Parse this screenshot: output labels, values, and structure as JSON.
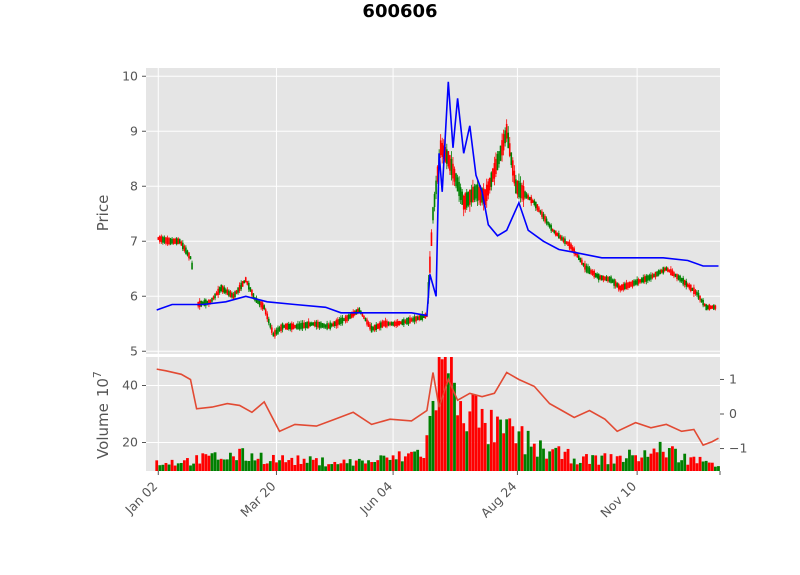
{
  "colors": {
    "panel_bg": "#e5e5e5",
    "grid": "#ffffff",
    "up": "#ff0000",
    "down": "#008000",
    "ma": "#0000ff",
    "secondary": "#e24a33",
    "text": "#555555"
  },
  "chart_data": [
    {
      "type": "candlestick",
      "title": "600606",
      "ylabel": "Price",
      "ylim": [
        4.95,
        10.15
      ],
      "yticks": [
        "5",
        "6",
        "7",
        "8",
        "9",
        "10"
      ],
      "x_range": [
        -7,
        367
      ],
      "x_ticks": [
        {
          "label": "Jan 02",
          "day": 1
        },
        {
          "label": "Mar 20",
          "day": 78
        },
        {
          "label": "Jun 04",
          "day": 154
        },
        {
          "label": "Aug 24",
          "day": 235
        },
        {
          "label": "Nov 10",
          "day": 313
        }
      ],
      "grid": true,
      "price_keypoints": [
        [
          1,
          7.05
        ],
        [
          8,
          7.0
        ],
        [
          15,
          7.0
        ],
        [
          22,
          6.7
        ],
        [
          23,
          6.55
        ],
        [
          24,
          null
        ],
        [
          26,
          5.85
        ],
        [
          35,
          5.9
        ],
        [
          42,
          6.15
        ],
        [
          50,
          6.0
        ],
        [
          58,
          6.3
        ],
        [
          64,
          5.95
        ],
        [
          70,
          5.8
        ],
        [
          76,
          5.3
        ],
        [
          82,
          5.45
        ],
        [
          92,
          5.45
        ],
        [
          102,
          5.5
        ],
        [
          112,
          5.45
        ],
        [
          116,
          5.5
        ],
        [
          124,
          5.6
        ],
        [
          132,
          5.75
        ],
        [
          140,
          5.4
        ],
        [
          148,
          5.5
        ],
        [
          156,
          5.5
        ],
        [
          164,
          5.55
        ],
        [
          176,
          5.65
        ],
        [
          180,
          7.5
        ],
        [
          185,
          8.7
        ],
        [
          190,
          8.5
        ],
        [
          194,
          8.2
        ],
        [
          200,
          7.7
        ],
        [
          208,
          7.9
        ],
        [
          214,
          7.8
        ],
        [
          224,
          8.6
        ],
        [
          228,
          9.0
        ],
        [
          234,
          8.0
        ],
        [
          246,
          7.7
        ],
        [
          258,
          7.2
        ],
        [
          270,
          6.9
        ],
        [
          280,
          6.5
        ],
        [
          288,
          6.35
        ],
        [
          296,
          6.3
        ],
        [
          302,
          6.15
        ],
        [
          312,
          6.25
        ],
        [
          322,
          6.35
        ],
        [
          332,
          6.5
        ],
        [
          342,
          6.3
        ],
        [
          352,
          6.05
        ],
        [
          358,
          5.8
        ],
        [
          364,
          5.8
        ]
      ],
      "ma_keypoints": [
        [
          0,
          5.75
        ],
        [
          10,
          5.85
        ],
        [
          30,
          5.85
        ],
        [
          45,
          5.9
        ],
        [
          58,
          6.0
        ],
        [
          72,
          5.9
        ],
        [
          90,
          5.85
        ],
        [
          110,
          5.8
        ],
        [
          120,
          5.7
        ],
        [
          135,
          5.7
        ],
        [
          150,
          5.7
        ],
        [
          166,
          5.7
        ],
        [
          176,
          5.65
        ],
        [
          178,
          6.4
        ],
        [
          182,
          6.0
        ],
        [
          184,
          8.6
        ],
        [
          186,
          7.9
        ],
        [
          190,
          9.9
        ],
        [
          193,
          8.7
        ],
        [
          196,
          9.6
        ],
        [
          200,
          8.6
        ],
        [
          204,
          9.1
        ],
        [
          208,
          8.2
        ],
        [
          212,
          7.9
        ],
        [
          216,
          7.3
        ],
        [
          222,
          7.1
        ],
        [
          228,
          7.2
        ],
        [
          236,
          7.7
        ],
        [
          242,
          7.2
        ],
        [
          252,
          7.0
        ],
        [
          262,
          6.85
        ],
        [
          272,
          6.8
        ],
        [
          290,
          6.7
        ],
        [
          310,
          6.7
        ],
        [
          330,
          6.7
        ],
        [
          346,
          6.65
        ],
        [
          356,
          6.55
        ],
        [
          366,
          6.55
        ]
      ]
    },
    {
      "type": "bar",
      "ylabel": "Volume  10^7",
      "ylabel_main": "Volume",
      "ylabel_unit": "10",
      "ylabel_exp": "7",
      "ylim": [
        10,
        50
      ],
      "yticks": [
        "20",
        "40"
      ],
      "volume_keypoints": [
        [
          0,
          3
        ],
        [
          20,
          3.5
        ],
        [
          40,
          5
        ],
        [
          60,
          5.5
        ],
        [
          80,
          4
        ],
        [
          100,
          3.5
        ],
        [
          120,
          3
        ],
        [
          140,
          3.5
        ],
        [
          160,
          5
        ],
        [
          174,
          7
        ],
        [
          178,
          15
        ],
        [
          184,
          40
        ],
        [
          190,
          38
        ],
        [
          196,
          30
        ],
        [
          204,
          22
        ],
        [
          212,
          16
        ],
        [
          220,
          14
        ],
        [
          232,
          13
        ],
        [
          244,
          9
        ],
        [
          260,
          6
        ],
        [
          280,
          4
        ],
        [
          300,
          4.5
        ],
        [
          320,
          6
        ],
        [
          332,
          8
        ],
        [
          340,
          5
        ],
        [
          360,
          3
        ],
        [
          366,
          3
        ]
      ]
    },
    {
      "type": "line",
      "series": [
        {
          "values": [
            [
              0,
              1.3
            ],
            [
              6,
              1.25
            ],
            [
              16,
              1.15
            ],
            [
              22,
              1.0
            ],
            [
              26,
              0.15
            ],
            [
              36,
              0.2
            ],
            [
              46,
              0.3
            ],
            [
              54,
              0.25
            ],
            [
              62,
              0.05
            ],
            [
              70,
              0.35
            ],
            [
              80,
              -0.5
            ],
            [
              90,
              -0.3
            ],
            [
              104,
              -0.35
            ],
            [
              116,
              -0.15
            ],
            [
              128,
              0.05
            ],
            [
              140,
              -0.3
            ],
            [
              152,
              -0.15
            ],
            [
              166,
              -0.2
            ],
            [
              176,
              0.1
            ],
            [
              180,
              1.2
            ],
            [
              184,
              0.2
            ],
            [
              190,
              1.0
            ],
            [
              196,
              0.4
            ],
            [
              204,
              0.6
            ],
            [
              212,
              0.5
            ],
            [
              220,
              0.6
            ],
            [
              228,
              1.2
            ],
            [
              236,
              1.0
            ],
            [
              246,
              0.8
            ],
            [
              256,
              0.3
            ],
            [
              264,
              0.1
            ],
            [
              272,
              -0.1
            ],
            [
              282,
              0.1
            ],
            [
              292,
              -0.15
            ],
            [
              300,
              -0.5
            ],
            [
              312,
              -0.25
            ],
            [
              322,
              -0.4
            ],
            [
              332,
              -0.3
            ],
            [
              342,
              -0.5
            ],
            [
              350,
              -0.45
            ],
            [
              356,
              -0.9
            ],
            [
              362,
              -0.8
            ],
            [
              366,
              -0.7
            ]
          ]
        }
      ],
      "ylim": [
        -1.65,
        1.65
      ],
      "yticks": [
        "1",
        "0",
        "−1"
      ]
    }
  ]
}
